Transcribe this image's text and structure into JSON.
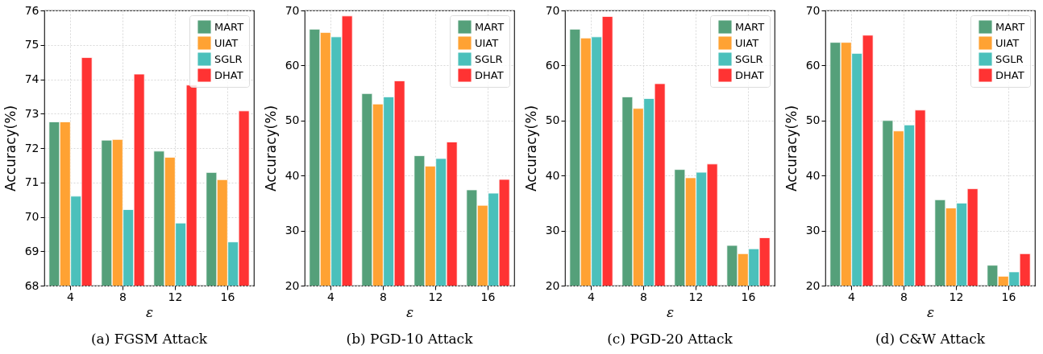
{
  "chart_data": [
    {
      "type": "bar",
      "title": "(a) FGSM Attack",
      "xlabel": "ε",
      "ylabel": "Accuracy(%)",
      "categories": [
        "4",
        "8",
        "12",
        "16"
      ],
      "ylim": [
        68,
        76
      ],
      "yticks": [
        68,
        69,
        70,
        71,
        72,
        73,
        74,
        75,
        76
      ],
      "grid": true,
      "legend": "top right",
      "series": [
        {
          "name": "MART",
          "color": "#55a07a",
          "values": [
            72.76,
            72.23,
            71.91,
            71.29
          ]
        },
        {
          "name": "UIAT",
          "color": "#ffa233",
          "values": [
            72.76,
            72.25,
            71.73,
            71.08
          ]
        },
        {
          "name": "SGLR",
          "color": "#4bc0bb",
          "values": [
            70.6,
            70.21,
            69.82,
            69.27
          ]
        },
        {
          "name": "DHAT",
          "color": "#ff3333",
          "values": [
            74.63,
            74.15,
            73.83,
            73.08
          ]
        }
      ]
    },
    {
      "type": "bar",
      "title": "(b) PGD-10 Attack",
      "xlabel": "ε",
      "ylabel": "Accuracy(%)",
      "categories": [
        "4",
        "8",
        "12",
        "16"
      ],
      "ylim": [
        20,
        70
      ],
      "yticks": [
        20,
        30,
        40,
        50,
        60,
        70
      ],
      "grid": true,
      "legend": "top right",
      "series": [
        {
          "name": "MART",
          "color": "#55a07a",
          "values": [
            66.6,
            54.9,
            43.6,
            37.4
          ]
        },
        {
          "name": "UIAT",
          "color": "#ffa233",
          "values": [
            66.0,
            53.0,
            41.7,
            34.6
          ]
        },
        {
          "name": "SGLR",
          "color": "#4bc0bb",
          "values": [
            65.2,
            54.3,
            43.1,
            36.8
          ]
        },
        {
          "name": "DHAT",
          "color": "#ff3333",
          "values": [
            69.0,
            57.2,
            46.1,
            39.3
          ]
        }
      ]
    },
    {
      "type": "bar",
      "title": "(c) PGD-20 Attack",
      "xlabel": "ε",
      "ylabel": "Accuracy(%)",
      "categories": [
        "4",
        "8",
        "12",
        "16"
      ],
      "ylim": [
        20,
        70
      ],
      "yticks": [
        20,
        30,
        40,
        50,
        60,
        70
      ],
      "grid": true,
      "legend": "top right",
      "series": [
        {
          "name": "MART",
          "color": "#55a07a",
          "values": [
            66.6,
            54.3,
            41.1,
            27.3
          ]
        },
        {
          "name": "UIAT",
          "color": "#ffa233",
          "values": [
            65.0,
            52.2,
            39.6,
            25.8
          ]
        },
        {
          "name": "SGLR",
          "color": "#4bc0bb",
          "values": [
            65.2,
            54.0,
            40.6,
            26.7
          ]
        },
        {
          "name": "DHAT",
          "color": "#ff3333",
          "values": [
            68.9,
            56.7,
            42.1,
            28.7
          ]
        }
      ]
    },
    {
      "type": "bar",
      "title": "(d) C&W Attack",
      "xlabel": "ε",
      "ylabel": "Accuracy(%)",
      "categories": [
        "4",
        "8",
        "12",
        "16"
      ],
      "ylim": [
        20,
        70
      ],
      "yticks": [
        20,
        30,
        40,
        50,
        60,
        70
      ],
      "grid": true,
      "legend": "top right",
      "series": [
        {
          "name": "MART",
          "color": "#55a07a",
          "values": [
            64.2,
            50.0,
            35.6,
            23.7
          ]
        },
        {
          "name": "UIAT",
          "color": "#ffa233",
          "values": [
            64.2,
            48.1,
            34.1,
            21.7
          ]
        },
        {
          "name": "SGLR",
          "color": "#4bc0bb",
          "values": [
            62.2,
            49.2,
            35.0,
            22.5
          ]
        },
        {
          "name": "DHAT",
          "color": "#ff3333",
          "values": [
            65.5,
            51.9,
            37.6,
            25.8
          ]
        }
      ]
    }
  ]
}
